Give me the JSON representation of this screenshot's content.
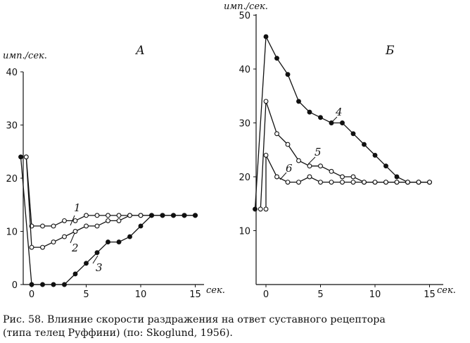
{
  "chart_data": [
    {
      "type": "line",
      "panel_label": "А",
      "ylabel": "имп./сек.",
      "xlabel": "сек.",
      "yticks": [
        "0",
        "10",
        "20",
        "30",
        "40"
      ],
      "xticks": [
        "0",
        "5",
        "10",
        "15"
      ],
      "ylim": [
        0,
        40
      ],
      "xlim": [
        -1,
        15
      ],
      "series": [
        {
          "name": "1",
          "marker": "open",
          "x": [
            -0.5,
            0,
            1,
            2,
            3,
            4,
            5,
            6,
            7,
            8,
            9,
            10,
            11,
            12,
            13,
            14,
            15
          ],
          "y": [
            24,
            11,
            11,
            11,
            12,
            12,
            13,
            13,
            13,
            13,
            13,
            13,
            13,
            13,
            13,
            13,
            13
          ]
        },
        {
          "name": "2",
          "marker": "open",
          "x": [
            -0.5,
            0,
            1,
            2,
            3,
            4,
            5,
            6,
            7,
            8,
            9,
            10,
            11,
            12,
            13,
            14,
            15
          ],
          "y": [
            24,
            7,
            7,
            8,
            9,
            10,
            11,
            11,
            12,
            12,
            13,
            13,
            13,
            13,
            13,
            13,
            13
          ]
        },
        {
          "name": "3",
          "marker": "filled",
          "x": [
            -1,
            0,
            1,
            2,
            3,
            4,
            5,
            6,
            7,
            8,
            9,
            10,
            11,
            12,
            13,
            14,
            15
          ],
          "y": [
            24,
            0,
            0,
            0,
            0,
            2,
            4,
            6,
            8,
            8,
            9,
            11,
            13,
            13,
            13,
            13,
            13
          ]
        }
      ],
      "series_labels": [
        "1",
        "2",
        "3"
      ]
    },
    {
      "type": "line",
      "panel_label": "Б",
      "ylabel": "имп./сек.",
      "xlabel": "сек.",
      "yticks": [
        "10",
        "20",
        "30",
        "40",
        "50"
      ],
      "xticks": [
        "0",
        "5",
        "10",
        "15"
      ],
      "ylim": [
        0,
        50
      ],
      "xlim": [
        -1,
        15
      ],
      "series": [
        {
          "name": "4",
          "marker": "filled",
          "x": [
            -1,
            0,
            1,
            2,
            3,
            4,
            5,
            6,
            7,
            8,
            9,
            10,
            11,
            12,
            13,
            14,
            15
          ],
          "y": [
            14,
            46,
            42,
            39,
            34,
            32,
            31,
            30,
            30,
            28,
            26,
            24,
            22,
            20,
            19,
            19,
            19
          ]
        },
        {
          "name": "5",
          "marker": "open",
          "x": [
            -0.5,
            0,
            1,
            2,
            3,
            4,
            5,
            6,
            7,
            8,
            9,
            10,
            11,
            12,
            13,
            14,
            15
          ],
          "y": [
            14,
            34,
            28,
            26,
            23,
            22,
            22,
            21,
            20,
            20,
            19,
            19,
            19,
            19,
            19,
            19,
            19
          ]
        },
        {
          "name": "6",
          "marker": "open",
          "x": [
            0,
            0,
            1,
            2,
            3,
            4,
            5,
            6,
            7,
            8,
            9,
            10,
            11,
            12,
            13,
            14,
            15
          ],
          "y": [
            14,
            24,
            20,
            19,
            19,
            20,
            19,
            19,
            19,
            19,
            19,
            19,
            19,
            19,
            19,
            19,
            19
          ]
        }
      ],
      "series_labels": [
        "4",
        "5",
        "6"
      ]
    }
  ],
  "caption": {
    "line1": "Рис. 58. Влияние скорости раздражения на ответ суставного рецептора",
    "line2": "(типа телец Руффини) (по: Skoglund, 1956)."
  }
}
